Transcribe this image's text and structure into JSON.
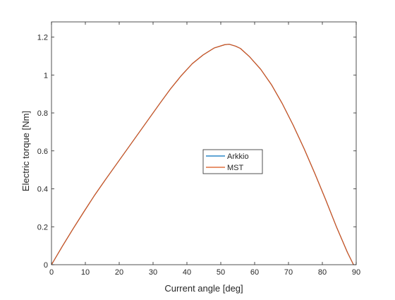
{
  "chart_data": {
    "type": "line",
    "xlabel": "Current angle [deg]",
    "ylabel": "Electric torque [Nm]",
    "xlim": [
      0,
      90
    ],
    "ylim": [
      0,
      1.28
    ],
    "x_ticks": [
      0,
      10,
      20,
      30,
      40,
      50,
      60,
      70,
      80,
      90
    ],
    "y_ticks": [
      0,
      0.2,
      0.4,
      0.6,
      0.8,
      1,
      1.2
    ],
    "x_tick_labels": [
      "0",
      "10",
      "20",
      "30",
      "40",
      "50",
      "60",
      "70",
      "80",
      "90"
    ],
    "y_tick_labels": [
      "0",
      "0.2",
      "0.4",
      "0.6",
      "0.8",
      "1",
      "1.2"
    ],
    "grid": false,
    "box": true,
    "legend": {
      "location": "center-right"
    },
    "series": [
      {
        "name": "Arkkio",
        "color": "#0072BD",
        "x": [
          0,
          3.2,
          6.4,
          9.6,
          12.8,
          16,
          19.2,
          22.4,
          25.6,
          28.8,
          32,
          35.2,
          38.4,
          41.6,
          44.8,
          48,
          51.2,
          52.5,
          54.4,
          55.8,
          58.4,
          61.8,
          65,
          68.2,
          71.4,
          74.6,
          77.8,
          81,
          84.2,
          87.4,
          89.2
        ],
        "y": [
          0,
          0.097,
          0.19,
          0.28,
          0.368,
          0.45,
          0.53,
          0.61,
          0.69,
          0.77,
          0.85,
          0.928,
          0.998,
          1.06,
          1.106,
          1.142,
          1.16,
          1.162,
          1.152,
          1.14,
          1.098,
          1.03,
          0.948,
          0.848,
          0.735,
          0.612,
          0.48,
          0.342,
          0.198,
          0.065,
          0
        ]
      },
      {
        "name": "MST",
        "color": "#D95319",
        "x": [
          0,
          3.2,
          6.4,
          9.6,
          12.8,
          16,
          19.2,
          22.4,
          25.6,
          28.8,
          32,
          35.2,
          38.4,
          41.6,
          44.8,
          48,
          51.2,
          52.5,
          54.4,
          55.8,
          58.4,
          61.8,
          65,
          68.2,
          71.4,
          74.6,
          77.8,
          81,
          84.2,
          87.4,
          89.2
        ],
        "y": [
          0,
          0.097,
          0.19,
          0.28,
          0.368,
          0.45,
          0.53,
          0.61,
          0.69,
          0.77,
          0.85,
          0.928,
          0.998,
          1.06,
          1.106,
          1.142,
          1.16,
          1.162,
          1.152,
          1.14,
          1.098,
          1.03,
          0.948,
          0.848,
          0.735,
          0.612,
          0.48,
          0.342,
          0.198,
          0.065,
          0
        ]
      }
    ]
  }
}
